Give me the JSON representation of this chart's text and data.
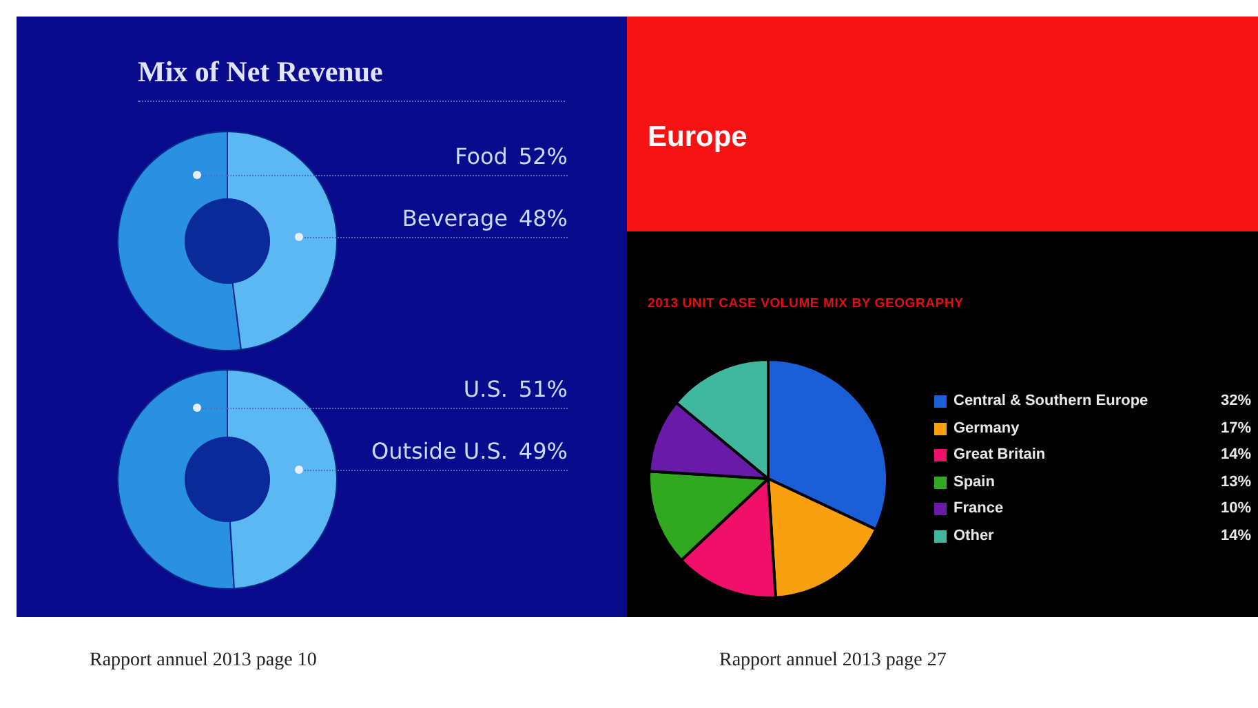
{
  "chart_data": [
    {
      "type": "donut",
      "title": "Mix of Net Revenue",
      "categories": [
        "Food",
        "Beverage"
      ],
      "values": [
        52,
        48
      ],
      "value_labels": [
        "52%",
        "48%"
      ],
      "colors": [
        "#2a90e2",
        "#5cb8f2"
      ]
    },
    {
      "type": "donut",
      "categories": [
        "U.S.",
        "Outside U.S."
      ],
      "values": [
        51,
        49
      ],
      "value_labels": [
        "51%",
        "49%"
      ],
      "colors": [
        "#2a90e2",
        "#5cb8f2"
      ],
      "annotations": [
        "Rapport annuel 2013 page 10"
      ]
    },
    {
      "type": "pie",
      "title": "Europe",
      "subtitle": "2013 UNIT CASE VOLUME MIX BY GEOGRAPHY",
      "categories": [
        "Central & Southern Europe",
        "Germany",
        "Great Britain",
        "Spain",
        "France",
        "Other"
      ],
      "values": [
        32,
        17,
        14,
        13,
        10,
        14
      ],
      "value_labels": [
        "32%",
        "17%",
        "14%",
        "13%",
        "10%",
        "14%"
      ],
      "colors": [
        "#1a5fd8",
        "#f8a010",
        "#f0106a",
        "#30a820",
        "#6a1aa8",
        "#40b8a0"
      ],
      "legend": "right",
      "annotations": [
        "Rapport annuel 2013 page 27"
      ]
    }
  ]
}
